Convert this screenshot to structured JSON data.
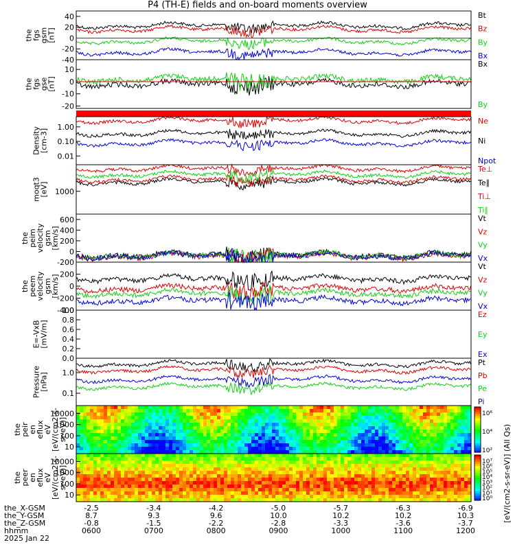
{
  "title": "P4 (TH-E) fields and on-board moments overview",
  "chart_data": [
    {
      "type": "line",
      "ylabel": [
        "the",
        "fgs",
        "gsm",
        "[nT]"
      ],
      "ylim": [
        -40,
        50
      ],
      "ticks": [
        "40",
        "20",
        "0",
        "-20",
        "-40"
      ],
      "tick_values": [
        40,
        20,
        0,
        -20,
        -40
      ],
      "legend": [
        {
          "name": "Bt",
          "color": "#000000"
        },
        {
          "name": "Bz",
          "color": "#e00000"
        },
        {
          "name": "By",
          "color": "#10d010"
        },
        {
          "name": "Bx",
          "color": "#0000e0"
        }
      ]
    },
    {
      "type": "line",
      "ylabel": [
        "the",
        "fgs",
        "gse",
        "[nT]"
      ],
      "ylim": [
        -22,
        18
      ],
      "ticks": [
        "10",
        "0",
        "-10",
        "-20"
      ],
      "tick_values": [
        10,
        0,
        -10,
        -20
      ],
      "legend": [
        {
          "name": "Bx",
          "color": "#000000"
        },
        {
          "name": "By",
          "color": "#10d010"
        }
      ]
    },
    {
      "type": "line",
      "ylabel": [
        "Density",
        "[cm-3]"
      ],
      "scale": "log",
      "ticks": [
        "1.00",
        "0.10",
        "0.01"
      ],
      "tick_values": [
        1,
        0.1,
        0.01
      ],
      "legend": [
        {
          "name": "Ne",
          "color": "#e00000"
        },
        {
          "name": "Ni",
          "color": "#000000"
        },
        {
          "name": "Npot",
          "color": "#0000e0"
        }
      ]
    },
    {
      "type": "line",
      "ylabel": [
        "moqt3",
        "[eV]"
      ],
      "scale": "log",
      "ticks": [
        "1000"
      ],
      "tick_values": [
        1000
      ],
      "legend": [
        {
          "name": "Te⊥",
          "color": "#e00000"
        },
        {
          "name": "Te∥",
          "color": "#000000"
        },
        {
          "name": "Ti⊥",
          "color": "#e00000"
        },
        {
          "name": "Ti∥",
          "color": "#10d010"
        }
      ]
    },
    {
      "type": "line",
      "ylabel": [
        "the",
        "peim",
        "velocity",
        "gsm",
        "[km/s]"
      ],
      "ylim": [
        -200,
        700
      ],
      "ticks": [
        "600",
        "400",
        "200",
        "0",
        "-200"
      ],
      "tick_values": [
        600,
        400,
        200,
        0,
        -200
      ],
      "legend": [
        {
          "name": "Vt",
          "color": "#000000"
        },
        {
          "name": "Vz",
          "color": "#e00000"
        },
        {
          "name": "Vy",
          "color": "#10d010"
        },
        {
          "name": "Vx",
          "color": "#0000e0"
        }
      ]
    },
    {
      "type": "line",
      "ylabel": [
        "the",
        "peem",
        "velocity",
        "gsm",
        "[km/s]"
      ],
      "ylim": [
        -400,
        400
      ],
      "ticks": [
        "200",
        "0",
        "-200",
        "-400"
      ],
      "tick_values": [
        200,
        0,
        -200,
        -400
      ],
      "legend": [
        {
          "name": "Vt",
          "color": "#000000"
        },
        {
          "name": "Vz",
          "color": "#e00000"
        },
        {
          "name": "Vy",
          "color": "#10d010"
        },
        {
          "name": "Vx",
          "color": "#0000e0"
        }
      ]
    },
    {
      "type": "line",
      "ylabel": [
        "E=-VxB",
        "[mV/m]"
      ],
      "ylim": [
        0,
        1
      ],
      "ticks": [
        "1.0",
        "0.8",
        "0.6",
        "0.4",
        "0.2",
        "0.0"
      ],
      "tick_values": [
        1.0,
        0.8,
        0.6,
        0.4,
        0.2,
        0.0
      ],
      "legend": [
        {
          "name": "Ez",
          "color": "#e00000"
        },
        {
          "name": "Ey",
          "color": "#10d010"
        },
        {
          "name": "Ex",
          "color": "#0000e0"
        }
      ]
    },
    {
      "type": "line",
      "ylabel": [
        "Pressure",
        "[nPa]"
      ],
      "scale": "log",
      "ticks": [
        "1.0",
        "0.1"
      ],
      "tick_values": [
        1.0,
        0.1
      ],
      "legend": [
        {
          "name": "Pt",
          "color": "#000000"
        },
        {
          "name": "Pb",
          "color": "#e00000"
        },
        {
          "name": "Pe",
          "color": "#10d010"
        },
        {
          "name": "Pi",
          "color": "#0000e0"
        }
      ]
    },
    {
      "type": "heatmap",
      "ylabel": [
        "the",
        "peir",
        "en",
        "eflux",
        "eV",
        "[eV/(cm2-s-",
        "sr-eV)]"
      ],
      "scale": "log",
      "ticks": [
        "10000",
        "1000",
        "100",
        "10"
      ],
      "tick_values": [
        10000,
        1000,
        100,
        10
      ],
      "colorbar_ticks": [
        "10⁶",
        "10⁴",
        "10²"
      ]
    },
    {
      "type": "heatmap",
      "ylabel": [
        "the",
        "peer",
        "en",
        "eflux",
        "eV",
        "[eV/(cm2-s-",
        "sr-eV)]"
      ],
      "scale": "log",
      "ticks": [
        "10000",
        "1000",
        "100",
        "10"
      ],
      "tick_values": [
        10000,
        1000,
        100,
        10
      ],
      "colorbar_ticks": [
        "10⁷",
        "10⁶",
        "10⁵",
        "10⁴",
        "10³",
        "10²",
        "10¹",
        "10⁰"
      ]
    }
  ],
  "colorbar_label": "[eV/(cm2-s-sr-eV)] (All Qs)",
  "xaxis": {
    "rows": [
      {
        "name": "the_X-GSM",
        "values": [
          "-2.5",
          "-3.4",
          "-4.2",
          "-5.0",
          "-5.7",
          "-6.3",
          "-6.9"
        ]
      },
      {
        "name": "the_Y-GSM",
        "values": [
          "8.7",
          "9.3",
          "9.6",
          "10.0",
          "10.2",
          "10.2",
          "10.3"
        ]
      },
      {
        "name": "the_Z-GSM",
        "values": [
          "-0.8",
          "-1.5",
          "-2.2",
          "-2.8",
          "-3.3",
          "-3.6",
          "-3.7"
        ]
      },
      {
        "name": "hhmm",
        "values": [
          "0600",
          "0700",
          "0800",
          "0900",
          "1000",
          "1100",
          "1200"
        ]
      }
    ],
    "date": "2025 Jan 22"
  },
  "colors": {
    "black": "#000000",
    "red": "#e00000",
    "green": "#10d010",
    "blue": "#0000e0"
  }
}
